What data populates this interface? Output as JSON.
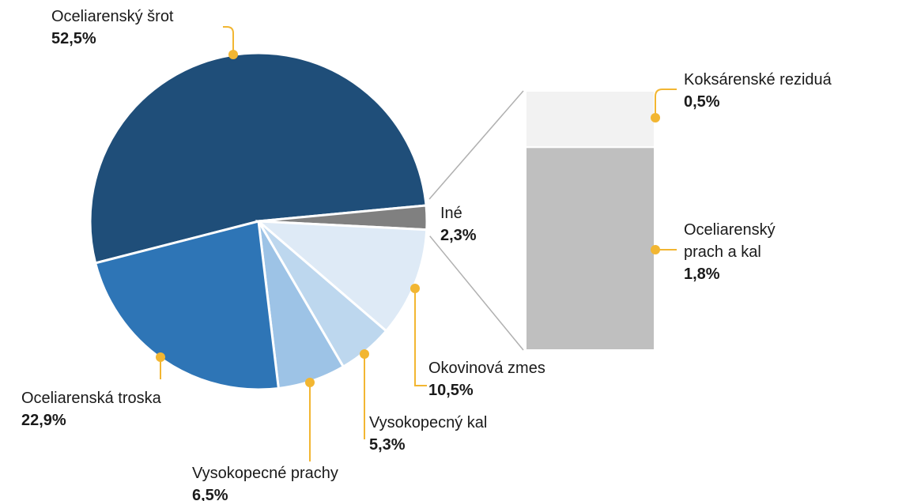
{
  "chart_data": {
    "type": "pie-of-bar",
    "categories": [
      "Oceliarenský šrot",
      "Iné",
      "Okovinová zmes",
      "Vysokopecný kal",
      "Vysokopecné prachy",
      "Oceliarenská troska"
    ],
    "values": [
      52.5,
      2.3,
      10.5,
      5.3,
      6.5,
      22.9
    ],
    "value_labels": [
      "52,5%",
      "2,3%",
      "10,5%",
      "5,3%",
      "6,5%",
      "22,9%"
    ],
    "colors": [
      "#1f4e79",
      "#808080",
      "#deeaf6",
      "#bdd7ee",
      "#9dc3e6",
      "#2e75b6"
    ],
    "bar": {
      "categories": [
        "Koksárenské reziduá",
        "Oceliarenský prach a kal"
      ],
      "values": [
        0.5,
        1.8
      ],
      "value_labels": [
        "0,5%",
        "1,8%"
      ],
      "colors": [
        "#f2f2f2",
        "#bfbfbf"
      ]
    }
  }
}
